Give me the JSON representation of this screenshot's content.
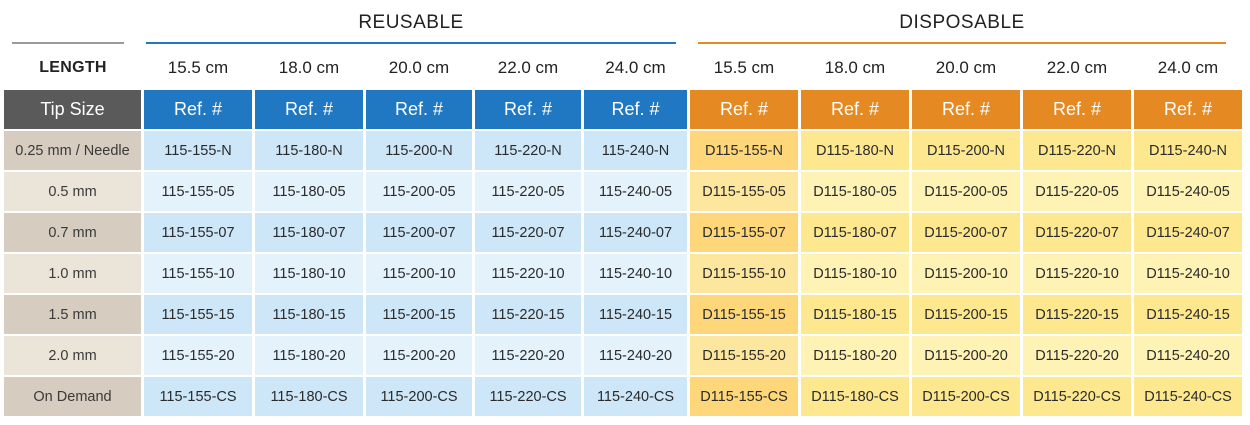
{
  "header": {
    "reusable_title": "REUSABLE",
    "disposable_title": "DISPOSABLE",
    "length_label": "LENGTH",
    "reusable_lengths": [
      "15.5 cm",
      "18.0 cm",
      "20.0 cm",
      "22.0 cm",
      "24.0 cm"
    ],
    "disposable_lengths": [
      "15.5 cm",
      "18.0 cm",
      "20.0 cm",
      "22.0 cm",
      "24.0 cm"
    ]
  },
  "columns": {
    "tip_size": "Tip Size",
    "ref": "Ref. #"
  },
  "colors": {
    "reusable_accent": "#1f78c1",
    "disposable_accent": "#e58a22",
    "tip_header": "#5a5a5a"
  },
  "rows": [
    {
      "tip": "0.25 mm / Needle",
      "reusable": [
        "115-155-N",
        "115-180-N",
        "115-200-N",
        "115-220-N",
        "115-240-N"
      ],
      "disposable": [
        "D115-155-N",
        "D115-180-N",
        "D115-200-N",
        "D115-220-N",
        "D115-240-N"
      ]
    },
    {
      "tip": "0.5 mm",
      "reusable": [
        "115-155-05",
        "115-180-05",
        "115-200-05",
        "115-220-05",
        "115-240-05"
      ],
      "disposable": [
        "D115-155-05",
        "D115-180-05",
        "D115-200-05",
        "D115-220-05",
        "D115-240-05"
      ]
    },
    {
      "tip": "0.7 mm",
      "reusable": [
        "115-155-07",
        "115-180-07",
        "115-200-07",
        "115-220-07",
        "115-240-07"
      ],
      "disposable": [
        "D115-155-07",
        "D115-180-07",
        "D115-200-07",
        "D115-220-07",
        "D115-240-07"
      ]
    },
    {
      "tip": "1.0 mm",
      "reusable": [
        "115-155-10",
        "115-180-10",
        "115-200-10",
        "115-220-10",
        "115-240-10"
      ],
      "disposable": [
        "D115-155-10",
        "D115-180-10",
        "D115-200-10",
        "D115-220-10",
        "D115-240-10"
      ]
    },
    {
      "tip": "1.5 mm",
      "reusable": [
        "115-155-15",
        "115-180-15",
        "115-200-15",
        "115-220-15",
        "115-240-15"
      ],
      "disposable": [
        "D115-155-15",
        "D115-180-15",
        "D115-200-15",
        "D115-220-15",
        "D115-240-15"
      ]
    },
    {
      "tip": "2.0 mm",
      "reusable": [
        "115-155-20",
        "115-180-20",
        "115-200-20",
        "115-220-20",
        "115-240-20"
      ],
      "disposable": [
        "D115-155-20",
        "D115-180-20",
        "D115-200-20",
        "D115-220-20",
        "D115-240-20"
      ]
    },
    {
      "tip": "On Demand",
      "reusable": [
        "115-155-CS",
        "115-180-CS",
        "115-200-CS",
        "115-220-CS",
        "115-240-CS"
      ],
      "disposable": [
        "D115-155-CS",
        "D115-180-CS",
        "D115-200-CS",
        "D115-220-CS",
        "D115-240-CS"
      ]
    }
  ]
}
